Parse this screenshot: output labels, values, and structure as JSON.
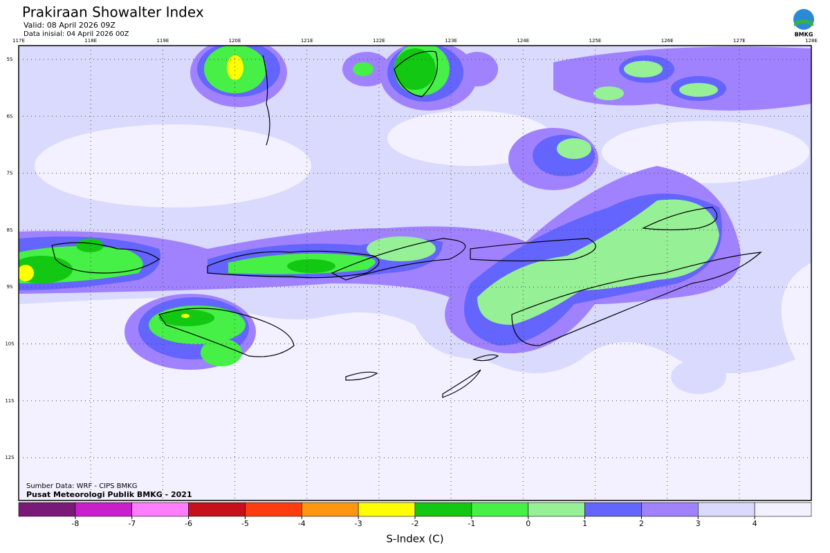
{
  "header": {
    "title": "Prakiraan Showalter Index",
    "valid": "Valid: 08 April 2026 09Z",
    "initial": "Data inisial: 04 April 2026 00Z"
  },
  "map": {
    "lon_labels": [
      "117E",
      "118E",
      "119E",
      "120E",
      "121E",
      "122E",
      "123E",
      "124E",
      "125E",
      "126E",
      "127E",
      "128E"
    ],
    "lat_labels": [
      "5S",
      "6S",
      "7S",
      "8S",
      "9S",
      "10S",
      "11S",
      "12S"
    ]
  },
  "credits": {
    "source": "Sumber Data: WRF - CIPS BMKG",
    "publisher": "Pusat Meteorologi Publik BMKG - 2021"
  },
  "legend": {
    "title": "S-Index (C)",
    "colors": [
      "#7a1a78",
      "#c81ecb",
      "#ff7dff",
      "#c80f1c",
      "#ff3c0f",
      "#ff960f",
      "#ffff00",
      "#12c812",
      "#46f046",
      "#96f096",
      "#6464ff",
      "#a082ff",
      "#dadaff",
      "#f3f1ff"
    ],
    "ticks": [
      -8,
      -7,
      -6,
      -5,
      -4,
      -3,
      -2,
      -1,
      0,
      1,
      2,
      3,
      4
    ]
  },
  "logo": {
    "label": "BMKG"
  }
}
